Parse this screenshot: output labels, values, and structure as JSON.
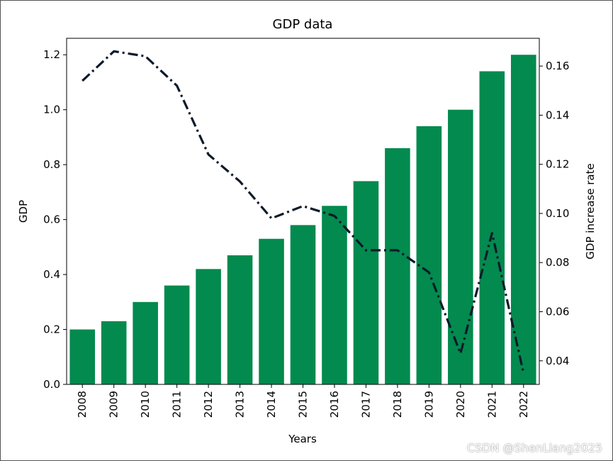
{
  "chart_data": {
    "type": "bar",
    "title": "GDP data",
    "xlabel": "Years",
    "ylabel": "GDP",
    "y2label": "GDP increase rate",
    "categories": [
      "2008",
      "2009",
      "2010",
      "2011",
      "2012",
      "2013",
      "2014",
      "2015",
      "2016",
      "2017",
      "2018",
      "2019",
      "2020",
      "2021",
      "2022"
    ],
    "series": [
      {
        "name": "GDP",
        "type": "bar",
        "axis": "left",
        "color": "#038a4e",
        "values": [
          0.2,
          0.23,
          0.3,
          0.36,
          0.42,
          0.47,
          0.53,
          0.58,
          0.65,
          0.74,
          0.86,
          0.94,
          1.0,
          1.14,
          1.2
        ]
      },
      {
        "name": "GDP increase rate",
        "type": "line",
        "axis": "right",
        "color": "#0d1a2b",
        "line_style": "dash-dot",
        "values": [
          0.154,
          0.166,
          0.164,
          0.152,
          0.124,
          0.113,
          0.098,
          0.103,
          0.099,
          0.085,
          0.085,
          0.076,
          0.043,
          0.092,
          0.035
        ]
      }
    ],
    "ylim": [
      0.0,
      1.26
    ],
    "y2lim": [
      0.0304,
      0.1713
    ],
    "yticks": [
      "0.0",
      "0.2",
      "0.4",
      "0.6",
      "0.8",
      "1.0",
      "1.2"
    ],
    "y2ticks": [
      "0.04",
      "0.06",
      "0.08",
      "0.10",
      "0.12",
      "0.14",
      "0.16"
    ],
    "grid": false,
    "legend": "none"
  },
  "watermark": "CSDN @ShenLiang2025"
}
